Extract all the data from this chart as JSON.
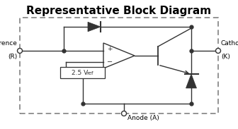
{
  "title": "Representative Block Diagram",
  "title_fontsize": 11,
  "title_fontweight": "bold",
  "bg_color": "#ffffff",
  "line_color": "#333333",
  "text_color": "#000000",
  "ref_label_1": "Reference",
  "ref_label_2": "(R)",
  "cathode_label_1": "Cathode",
  "cathode_label_2": "(K)",
  "anode_label": "Anode (A)",
  "vref_label": "2.5 V",
  "vref_sub": "ref"
}
